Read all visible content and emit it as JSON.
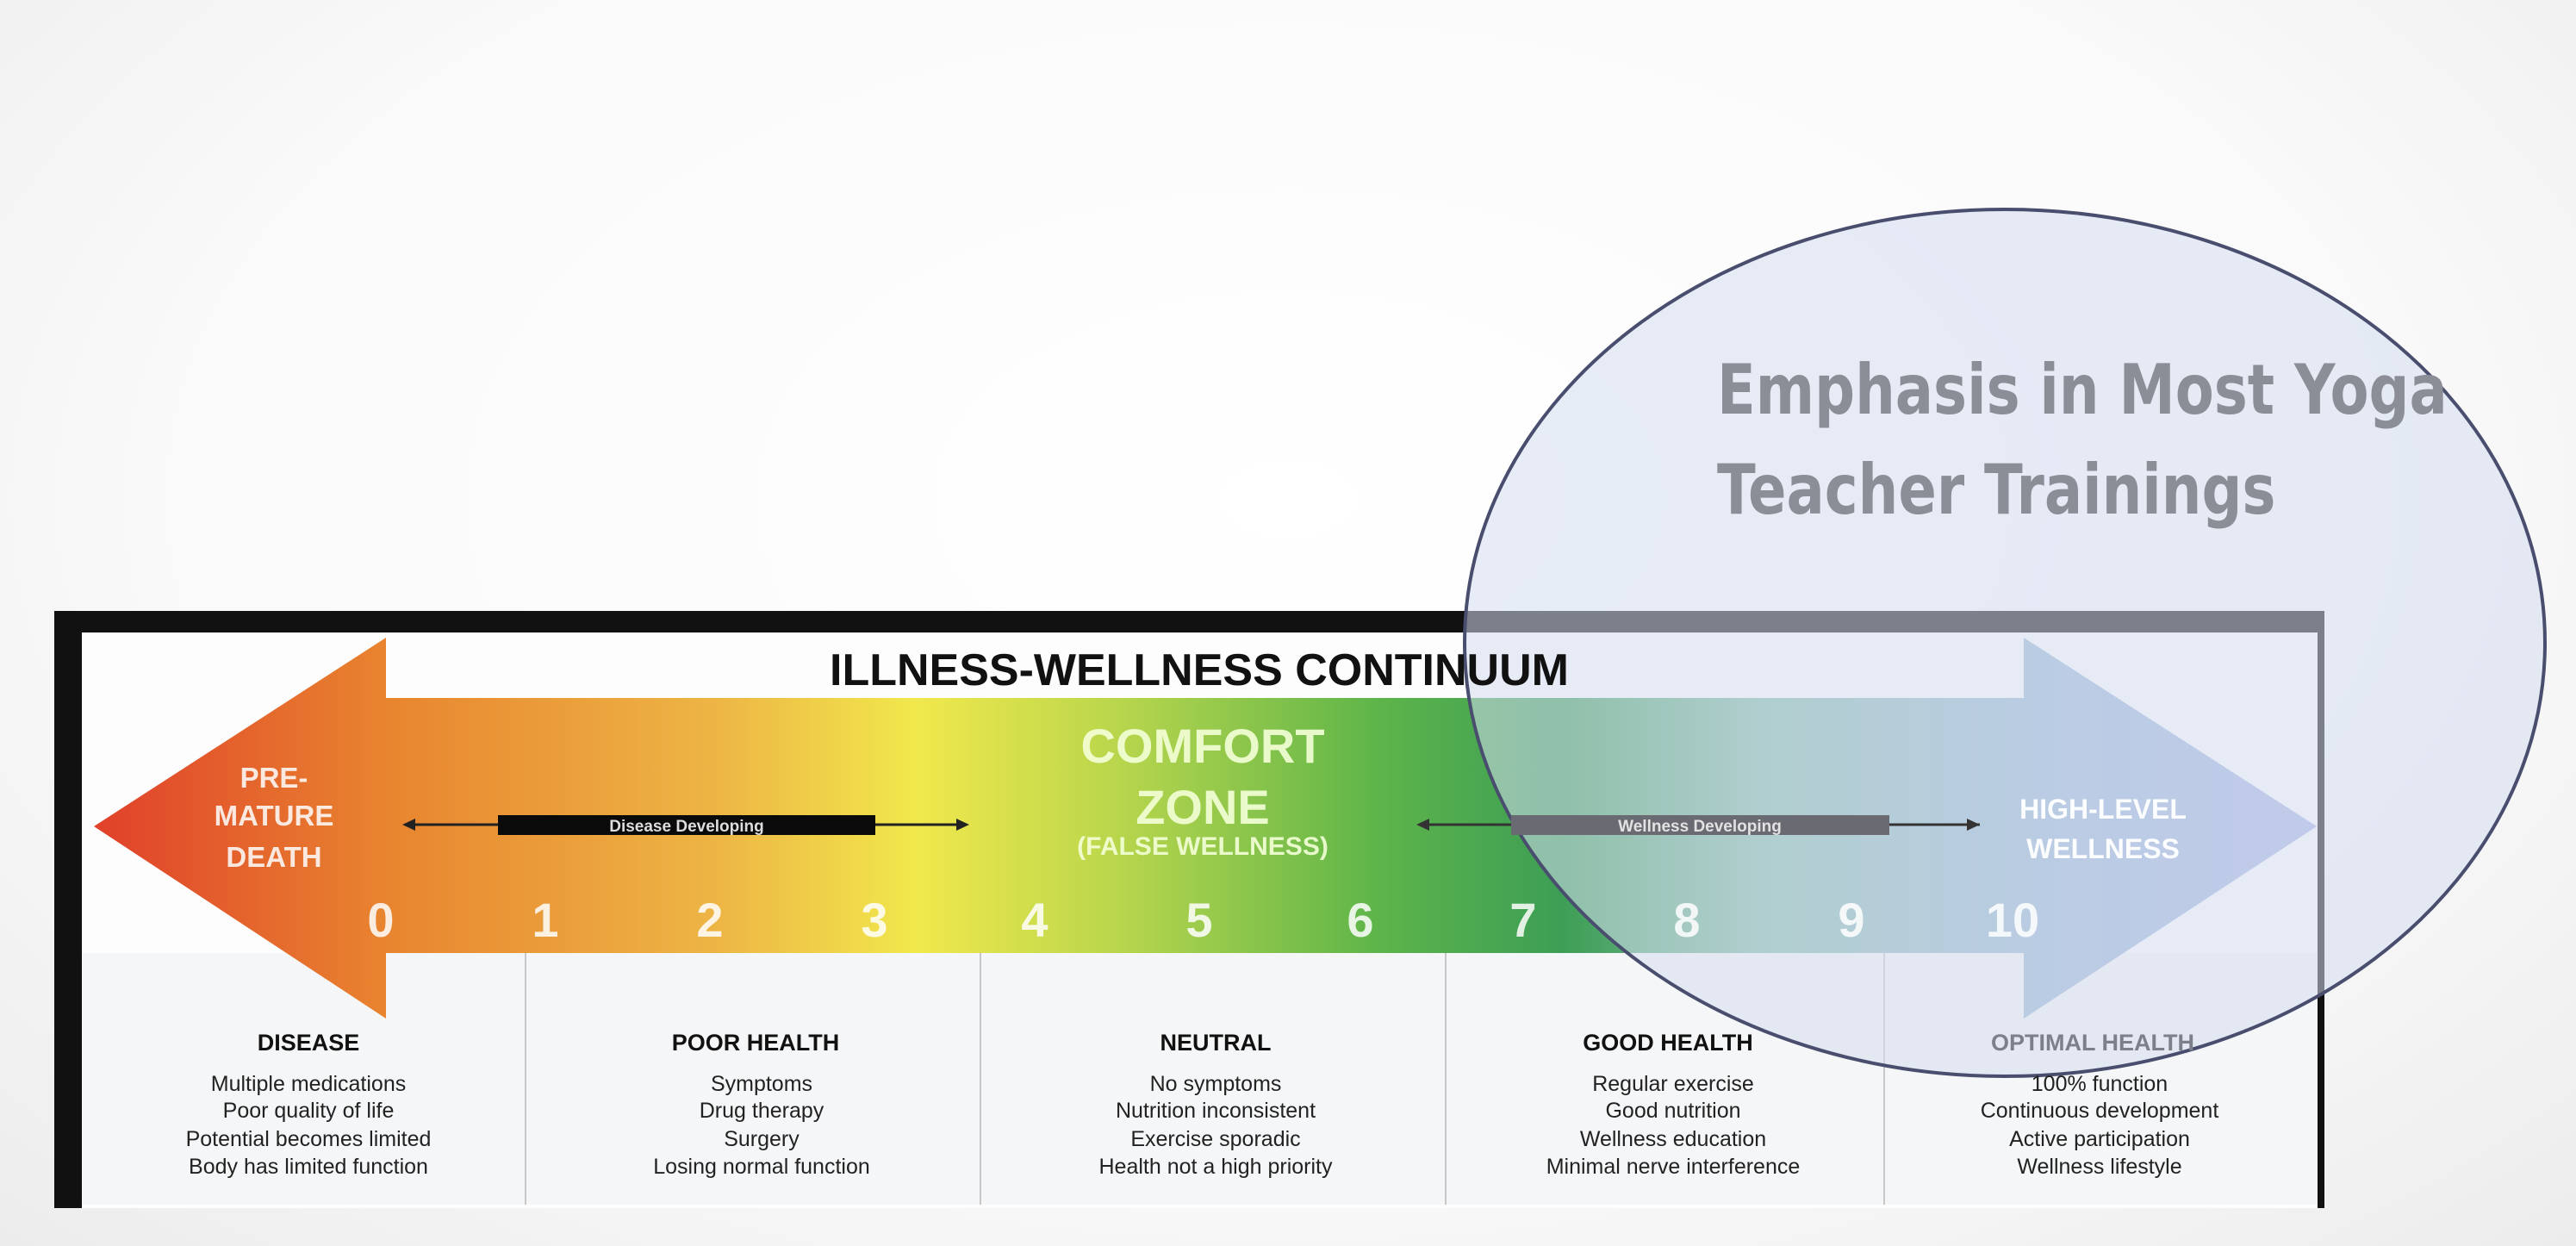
{
  "diagram": {
    "title": "ILLNESS-WELLNESS CONTINUUM",
    "left_label": [
      "PRE-",
      "MATURE",
      "DEATH"
    ],
    "center_label": [
      "COMFORT",
      "ZONE",
      "(FALSE WELLNESS)"
    ],
    "right_label": [
      "HIGH-LEVEL",
      "WELLNESS"
    ],
    "disease_bar_label": "Disease Developing",
    "wellness_bar_label": "Wellness Developing",
    "scale": [
      "0",
      "1",
      "2",
      "3",
      "4",
      "5",
      "6",
      "7",
      "8",
      "9",
      "10"
    ],
    "columns": [
      {
        "heading": "DISEASE",
        "items": [
          "Multiple medications",
          "Poor quality of life",
          "Potential becomes limited",
          "Body has limited function"
        ]
      },
      {
        "heading": "POOR HEALTH",
        "items": [
          "Symptoms",
          "Drug therapy",
          "Surgery",
          "Losing normal function"
        ]
      },
      {
        "heading": "NEUTRAL",
        "items": [
          "No symptoms",
          "Nutrition inconsistent",
          "Exercise sporadic",
          "Health not a high priority"
        ]
      },
      {
        "heading": "GOOD HEALTH",
        "items": [
          "Regular exercise",
          "Good nutrition",
          "Wellness education",
          "Minimal nerve interference"
        ]
      },
      {
        "heading": "OPTIMAL HEALTH",
        "items": [
          "100% function",
          "Continuous development",
          "Active participation",
          "Wellness lifestyle"
        ]
      }
    ],
    "colors": {
      "red": "#e0402a",
      "orange": "#e8852f",
      "yellow": "#f0e84a",
      "green": "#4caf4a",
      "blue": "#a8b4e0"
    }
  },
  "callout": {
    "lines": [
      "Emphasis in Most Yoga",
      "Teacher Trainings"
    ],
    "stroke_color": "#4a4e6e"
  }
}
